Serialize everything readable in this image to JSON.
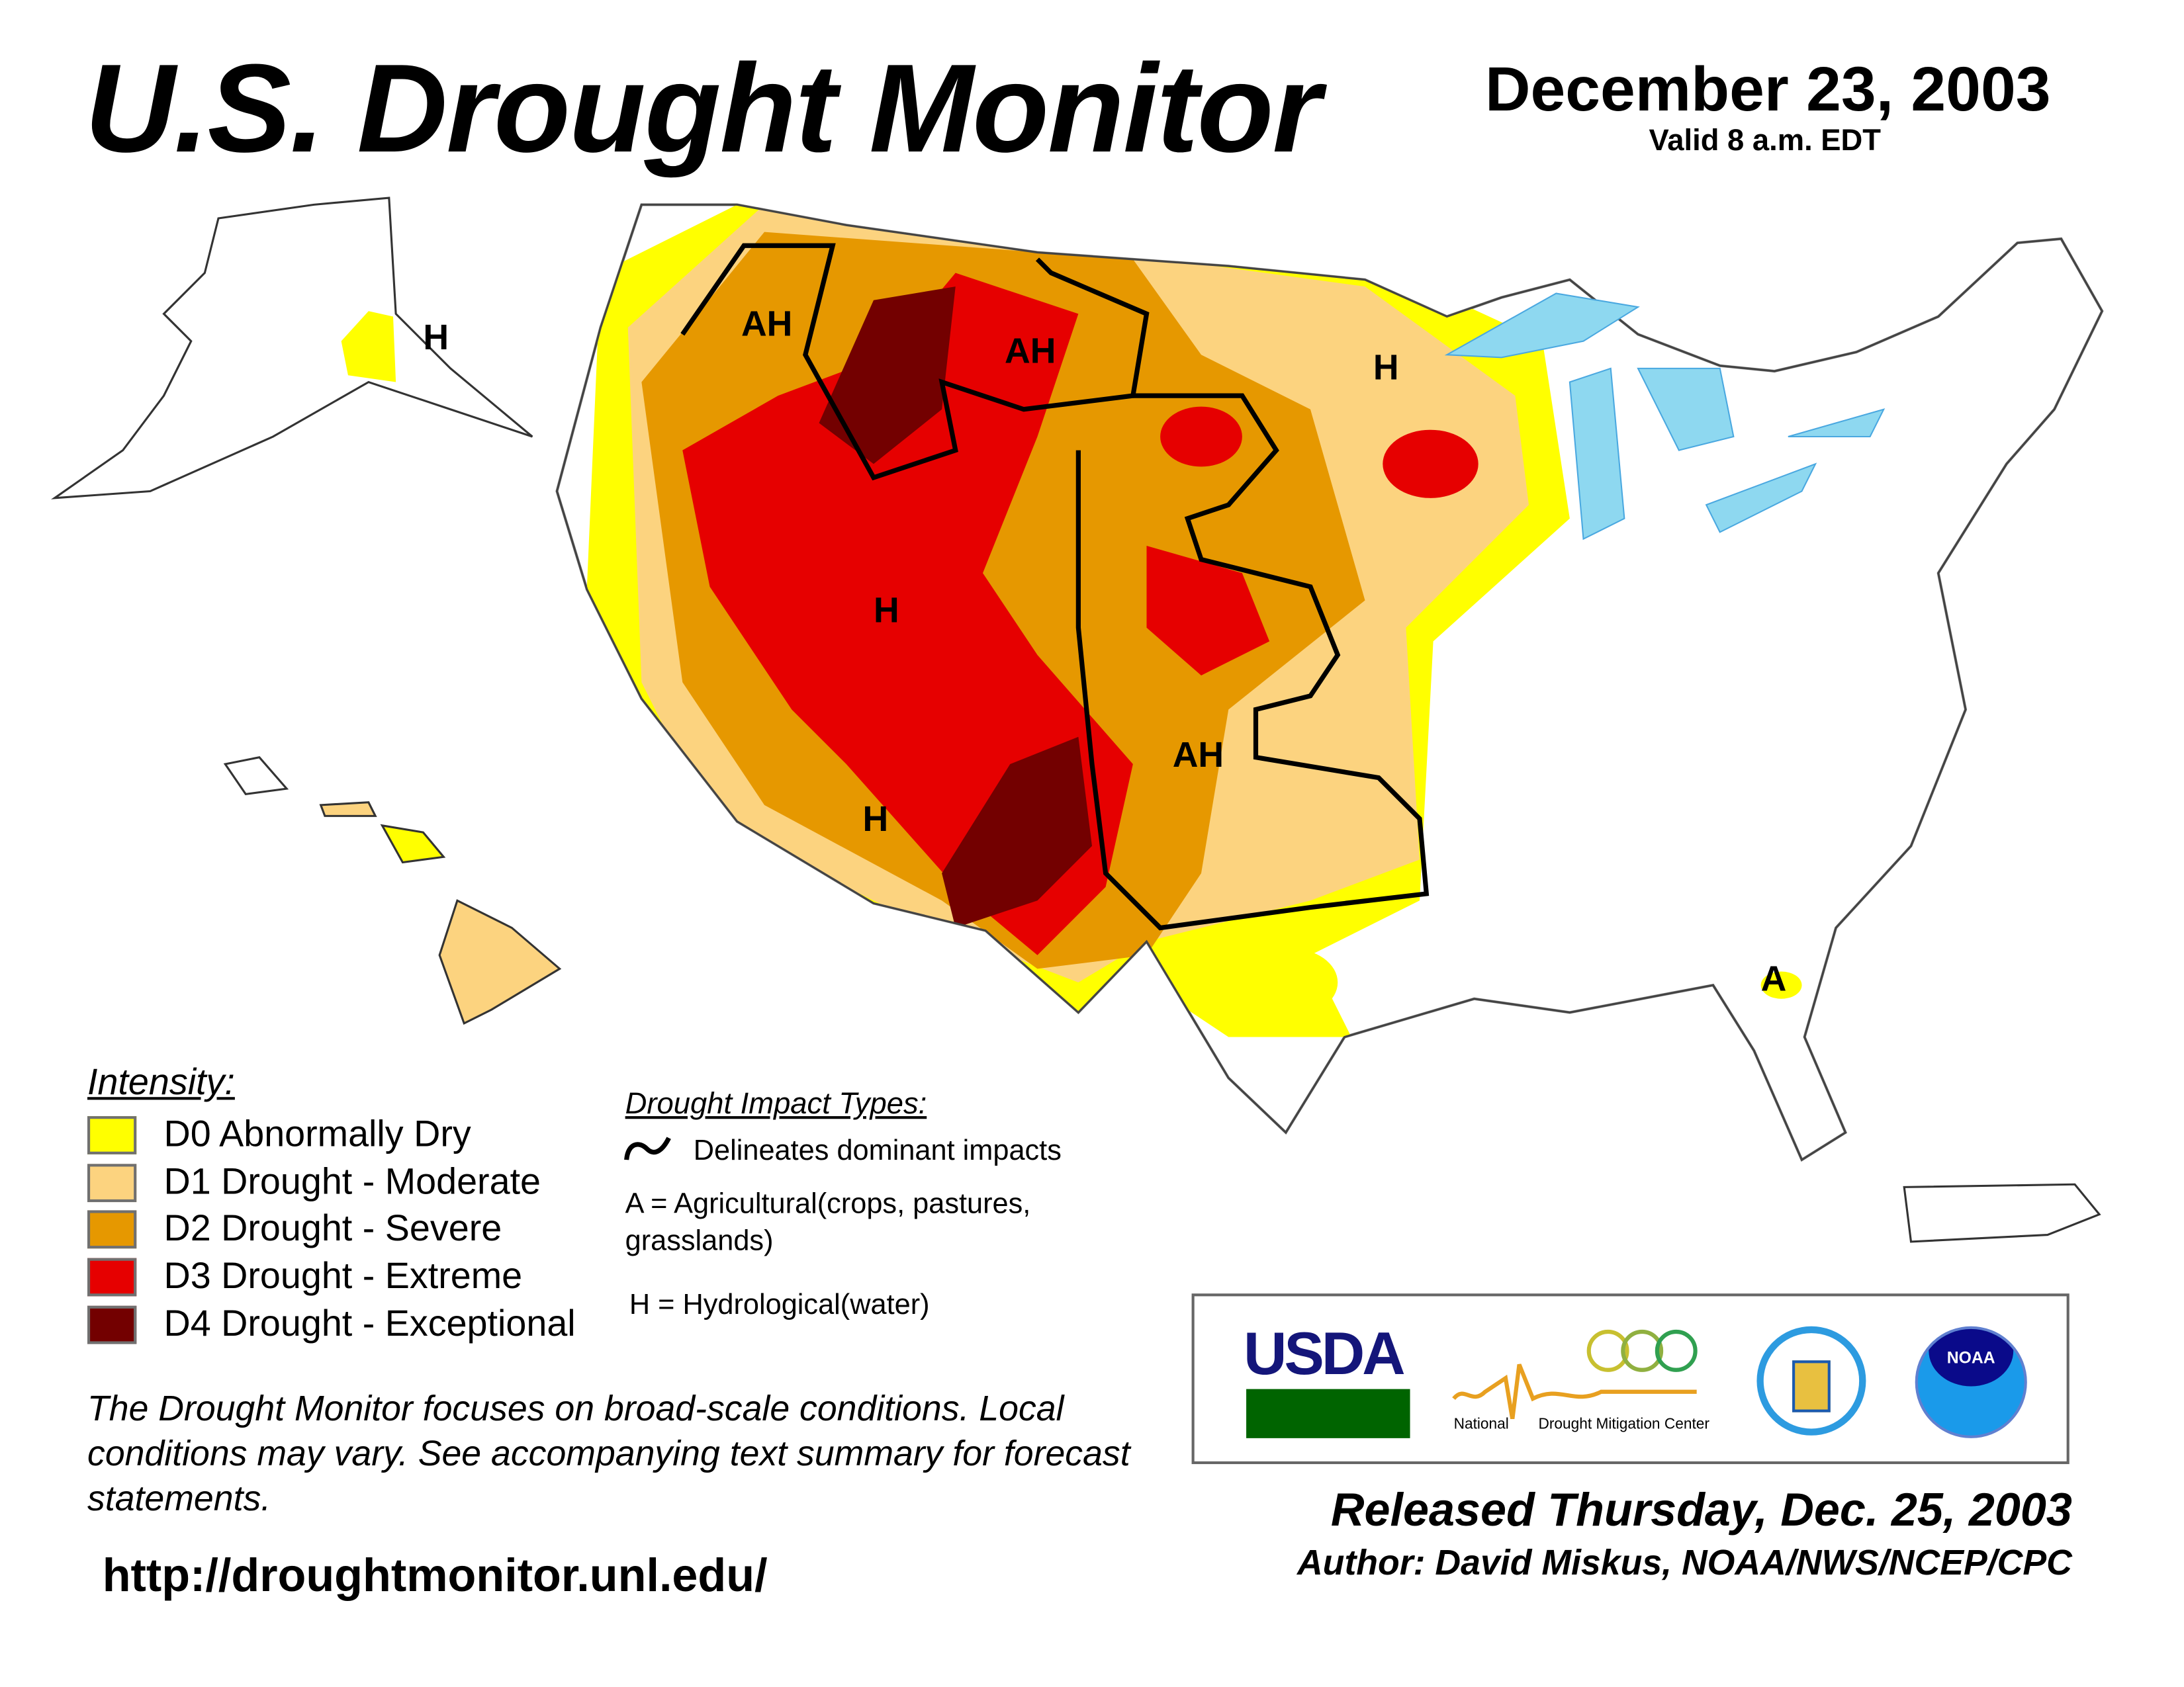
{
  "header": {
    "title": "U.S. Drought Monitor",
    "date": "December 23, 2003",
    "valid": "Valid 8 a.m. EDT"
  },
  "legend": {
    "title": "Intensity:",
    "items": [
      {
        "label": "D0 Abnormally Dry",
        "color": "#FFFF00"
      },
      {
        "label": "D1 Drought - Moderate",
        "color": "#FCD37F"
      },
      {
        "label": "D2 Drought - Severe",
        "color": "#E69800"
      },
      {
        "label": "D3 Drought - Extreme",
        "color": "#E60000"
      },
      {
        "label": "D4 Drought - Exceptional",
        "color": "#730000"
      }
    ]
  },
  "impacts": {
    "title": "Drought Impact Types:",
    "line": "Delineates dominant impacts",
    "a_line1": "A = Agricultural(crops, pastures,",
    "a_line2": "grasslands)",
    "h": "H = Hydrological(water)"
  },
  "map_labels": [
    {
      "text": "AH"
    },
    {
      "text": "AH"
    },
    {
      "text": "H"
    },
    {
      "text": "H"
    },
    {
      "text": "AH"
    },
    {
      "text": "H"
    },
    {
      "text": "A"
    },
    {
      "text": "H"
    }
  ],
  "logos": {
    "usda": "USDA",
    "ndmc_left": "National",
    "ndmc_right": "Drought Mitigation Center",
    "noaa": "NOAA"
  },
  "footer": {
    "note": "The Drought Monitor focuses on broad-scale conditions. Local conditions may vary. See accompanying text summary for forecast statements.",
    "url": "http://droughtmonitor.unl.edu/",
    "released": "Released Thursday, Dec. 25, 2003",
    "author": "Author: David Miskus, NOAA/NWS/NCEP/CPC"
  }
}
